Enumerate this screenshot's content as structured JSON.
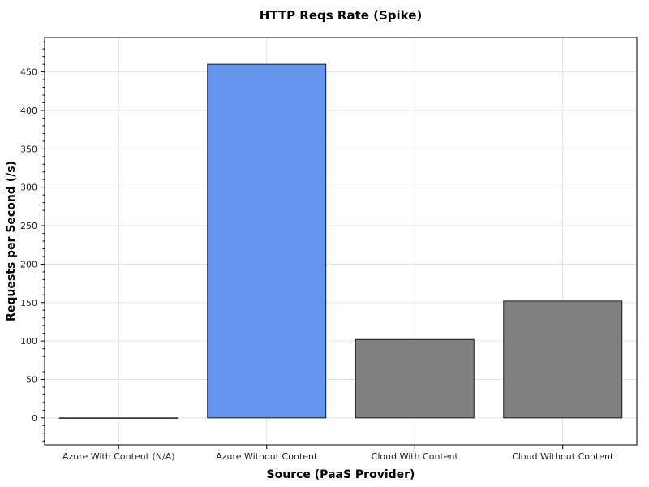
{
  "chart_data": {
    "type": "bar",
    "title": "HTTP Reqs Rate (Spike)",
    "xlabel": "Source (PaaS Provider)",
    "ylabel": "Requests per Second (/s)",
    "categories": [
      "Azure With Content (N/A)",
      "Azure Without Content",
      "Cloud With Content",
      "Cloud Without Content"
    ],
    "values": [
      0,
      460,
      102,
      152
    ],
    "bar_colors": [
      "#808080",
      "#6495ED",
      "#808080",
      "#808080"
    ],
    "ylim": [
      -35,
      495
    ],
    "yticks": [
      0,
      50,
      100,
      150,
      200,
      250,
      300,
      350,
      400,
      450
    ],
    "ytick_labels": [
      "0",
      "50",
      "100",
      "150",
      "200",
      "250",
      "300",
      "350",
      "400",
      "450"
    ],
    "grid": true
  }
}
